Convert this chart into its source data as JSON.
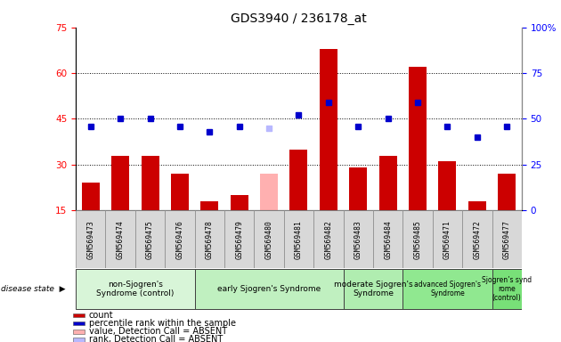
{
  "title": "GDS3940 / 236178_at",
  "samples": [
    "GSM569473",
    "GSM569474",
    "GSM569475",
    "GSM569476",
    "GSM569478",
    "GSM569479",
    "GSM569480",
    "GSM569481",
    "GSM569482",
    "GSM569483",
    "GSM569484",
    "GSM569485",
    "GSM569471",
    "GSM569472",
    "GSM569477"
  ],
  "count_values": [
    24,
    33,
    33,
    27,
    18,
    20,
    27,
    35,
    68,
    29,
    33,
    62,
    31,
    18,
    27
  ],
  "count_absent": [
    false,
    false,
    false,
    false,
    false,
    false,
    true,
    false,
    false,
    false,
    false,
    false,
    false,
    false,
    false
  ],
  "rank_values": [
    46,
    50,
    50,
    46,
    43,
    46,
    45,
    52,
    59,
    46,
    50,
    59,
    46,
    40,
    46
  ],
  "rank_absent": [
    false,
    false,
    false,
    false,
    false,
    false,
    true,
    false,
    false,
    false,
    false,
    false,
    false,
    false,
    false
  ],
  "groups": [
    {
      "label": "non-Sjogren's\nSyndrome (control)",
      "start": 0,
      "end": 4
    },
    {
      "label": "early Sjogren's Syndrome",
      "start": 4,
      "end": 9
    },
    {
      "label": "moderate Sjogren's\nSyndrome",
      "start": 9,
      "end": 11
    },
    {
      "label": "advanced Sjogren's\nSyndrome",
      "start": 11,
      "end": 14
    },
    {
      "label": "Sjogren’s synd\nrome\n(control)",
      "start": 14,
      "end": 15
    }
  ],
  "group_colors": [
    "#d8f5d8",
    "#c0f0c0",
    "#b0edb0",
    "#90e890",
    "#78e078"
  ],
  "ylim_left": [
    15,
    75
  ],
  "ylim_right": [
    0,
    100
  ],
  "yticks_left": [
    15,
    30,
    45,
    60,
    75
  ],
  "yticks_right": [
    0,
    25,
    50,
    75,
    100
  ],
  "bar_color": "#cc0000",
  "absent_bar_color": "#ffb0b0",
  "rank_color": "#0000cc",
  "absent_rank_color": "#b8b8ff",
  "plot_bg": "#ffffff",
  "sample_box_color": "#d8d8d8",
  "grid_levels": [
    30,
    45,
    60
  ]
}
